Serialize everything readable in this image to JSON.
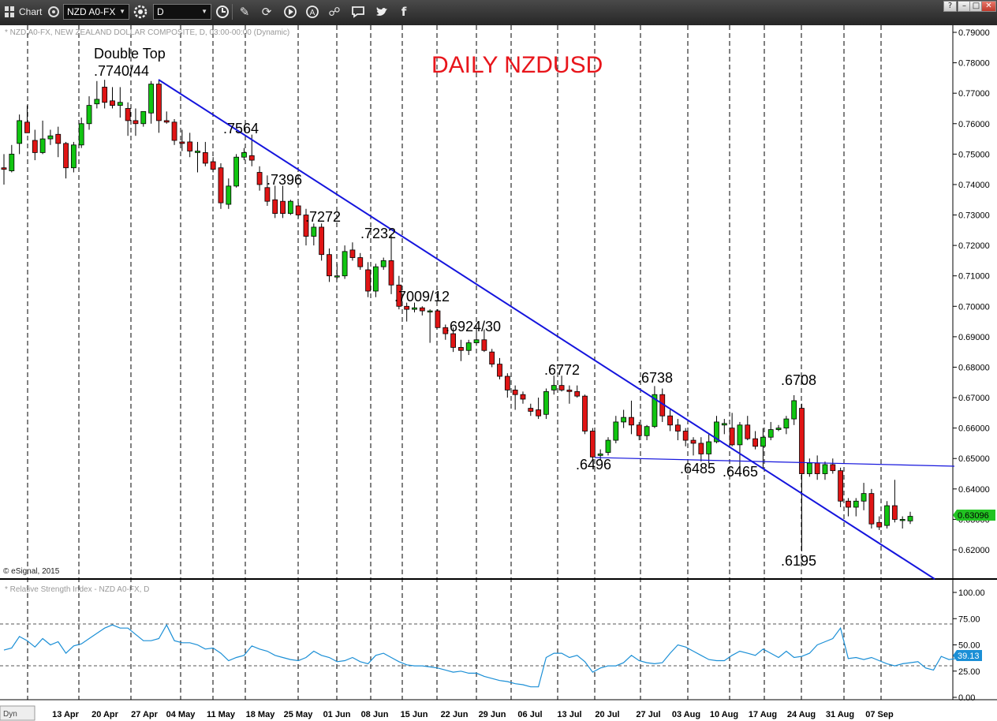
{
  "toolbar": {
    "app_label": "Chart",
    "symbol": "NZD A0-FX",
    "interval": "D",
    "icons": [
      "grid-icon",
      "sync-icon",
      "settings-icon",
      "clock-icon",
      "pencil-icon",
      "cycle-icon",
      "play-icon",
      "alert-icon",
      "link-icon",
      "comment-icon",
      "twitter-icon",
      "facebook-icon"
    ],
    "window_buttons": [
      "?",
      "–",
      "□",
      "✕"
    ]
  },
  "price_pane": {
    "header": "* NZD A0-FX, NEW ZEALAND DOLLAR COMPOSITE, D, 03:00-00:00 (Dynamic)",
    "title": "DAILY NZDUSD",
    "title_color": "#e8151b",
    "credit": "© eSignal, 2015",
    "y_ticks": [
      "0.79000",
      "0.78000",
      "0.77000",
      "0.76000",
      "0.75000",
      "0.74000",
      "0.73000",
      "0.72000",
      "0.71000",
      "0.70000",
      "0.69000",
      "0.68000",
      "0.67000",
      "0.66000",
      "0.65000",
      "0.64000",
      "0.63000",
      "0.62000"
    ],
    "last_price": "0.63096",
    "last_price_bg": "#22c322"
  },
  "rsi_pane": {
    "header": "* Relative Strength Index - NZD A0-FX, D",
    "y_ticks": [
      "100.00",
      "75.00",
      "50.00",
      "25.00",
      "0.00"
    ],
    "last_value": "39.13",
    "line_color": "#1b8fd6",
    "last_bg": "#1b8fd6"
  },
  "footer": {
    "dyn_label": "Dyn",
    "x_ticks": [
      "13 Apr",
      "20 Apr",
      "27 Apr",
      "04 May",
      "11 May",
      "18 May",
      "25 May",
      "01 Jun",
      "08 Jun",
      "15 Jun",
      "22 Jun",
      "29 Jun",
      "06 Jul",
      "13 Jul",
      "20 Jul",
      "27 Jul",
      "03 Aug",
      "10 Aug",
      "17 Aug",
      "24 Aug",
      "31 Aug",
      "07 Sep"
    ]
  },
  "chart_data": {
    "type": "candlestick",
    "up_color": "#11c511",
    "down_color": "#e01515",
    "trendline_color": "#1515dd",
    "candles": [
      {
        "o": 0.7455,
        "h": 0.75,
        "l": 0.74,
        "c": 0.745
      },
      {
        "o": 0.7445,
        "h": 0.753,
        "l": 0.744,
        "c": 0.75
      },
      {
        "o": 0.7535,
        "h": 0.763,
        "l": 0.75,
        "c": 0.761
      },
      {
        "o": 0.7605,
        "h": 0.766,
        "l": 0.757,
        "c": 0.757
      },
      {
        "o": 0.7545,
        "h": 0.758,
        "l": 0.748,
        "c": 0.7505
      },
      {
        "o": 0.7505,
        "h": 0.761,
        "l": 0.75,
        "c": 0.755
      },
      {
        "o": 0.755,
        "h": 0.758,
        "l": 0.753,
        "c": 0.756
      },
      {
        "o": 0.7565,
        "h": 0.759,
        "l": 0.749,
        "c": 0.7535
      },
      {
        "o": 0.7535,
        "h": 0.754,
        "l": 0.742,
        "c": 0.7455
      },
      {
        "o": 0.7455,
        "h": 0.754,
        "l": 0.744,
        "c": 0.753
      },
      {
        "o": 0.753,
        "h": 0.762,
        "l": 0.752,
        "c": 0.76
      },
      {
        "o": 0.76,
        "h": 0.769,
        "l": 0.758,
        "c": 0.766
      },
      {
        "o": 0.7665,
        "h": 0.774,
        "l": 0.765,
        "c": 0.768
      },
      {
        "o": 0.772,
        "h": 0.7744,
        "l": 0.765,
        "c": 0.767
      },
      {
        "o": 0.7675,
        "h": 0.772,
        "l": 0.765,
        "c": 0.766
      },
      {
        "o": 0.766,
        "h": 0.772,
        "l": 0.762,
        "c": 0.767
      },
      {
        "o": 0.765,
        "h": 0.767,
        "l": 0.756,
        "c": 0.761
      },
      {
        "o": 0.761,
        "h": 0.765,
        "l": 0.756,
        "c": 0.76
      },
      {
        "o": 0.76,
        "h": 0.764,
        "l": 0.759,
        "c": 0.764
      },
      {
        "o": 0.7635,
        "h": 0.774,
        "l": 0.76,
        "c": 0.773
      },
      {
        "o": 0.773,
        "h": 0.7744,
        "l": 0.757,
        "c": 0.761
      },
      {
        "o": 0.761,
        "h": 0.764,
        "l": 0.76,
        "c": 0.7605
      },
      {
        "o": 0.7605,
        "h": 0.7615,
        "l": 0.753,
        "c": 0.7545
      },
      {
        "o": 0.754,
        "h": 0.758,
        "l": 0.751,
        "c": 0.7535
      },
      {
        "o": 0.754,
        "h": 0.757,
        "l": 0.749,
        "c": 0.751
      },
      {
        "o": 0.7505,
        "h": 0.754,
        "l": 0.744,
        "c": 0.751
      },
      {
        "o": 0.7505,
        "h": 0.754,
        "l": 0.746,
        "c": 0.747
      },
      {
        "o": 0.7475,
        "h": 0.749,
        "l": 0.744,
        "c": 0.745
      },
      {
        "o": 0.7455,
        "h": 0.747,
        "l": 0.732,
        "c": 0.734
      },
      {
        "o": 0.7335,
        "h": 0.742,
        "l": 0.732,
        "c": 0.7395
      },
      {
        "o": 0.7395,
        "h": 0.75,
        "l": 0.739,
        "c": 0.749
      },
      {
        "o": 0.749,
        "h": 0.752,
        "l": 0.748,
        "c": 0.7505
      },
      {
        "o": 0.7495,
        "h": 0.7564,
        "l": 0.746,
        "c": 0.748
      },
      {
        "o": 0.744,
        "h": 0.746,
        "l": 0.738,
        "c": 0.74
      },
      {
        "o": 0.739,
        "h": 0.743,
        "l": 0.733,
        "c": 0.7345
      },
      {
        "o": 0.735,
        "h": 0.7396,
        "l": 0.729,
        "c": 0.7305
      },
      {
        "o": 0.7345,
        "h": 0.7396,
        "l": 0.729,
        "c": 0.7305
      },
      {
        "o": 0.7305,
        "h": 0.735,
        "l": 0.73,
        "c": 0.7345
      },
      {
        "o": 0.733,
        "h": 0.734,
        "l": 0.729,
        "c": 0.73
      },
      {
        "o": 0.73,
        "h": 0.732,
        "l": 0.72,
        "c": 0.723
      },
      {
        "o": 0.723,
        "h": 0.7272,
        "l": 0.72,
        "c": 0.726
      },
      {
        "o": 0.726,
        "h": 0.7272,
        "l": 0.715,
        "c": 0.717
      },
      {
        "o": 0.717,
        "h": 0.719,
        "l": 0.708,
        "c": 0.71
      },
      {
        "o": 0.71,
        "h": 0.714,
        "l": 0.709,
        "c": 0.71
      },
      {
        "o": 0.71,
        "h": 0.72,
        "l": 0.709,
        "c": 0.718
      },
      {
        "o": 0.7185,
        "h": 0.721,
        "l": 0.715,
        "c": 0.716
      },
      {
        "o": 0.716,
        "h": 0.7175,
        "l": 0.712,
        "c": 0.713
      },
      {
        "o": 0.712,
        "h": 0.7145,
        "l": 0.703,
        "c": 0.705
      },
      {
        "o": 0.705,
        "h": 0.714,
        "l": 0.703,
        "c": 0.713
      },
      {
        "o": 0.713,
        "h": 0.716,
        "l": 0.712,
        "c": 0.715
      },
      {
        "o": 0.715,
        "h": 0.7232,
        "l": 0.704,
        "c": 0.707
      },
      {
        "o": 0.707,
        "h": 0.71,
        "l": 0.699,
        "c": 0.7
      },
      {
        "o": 0.7,
        "h": 0.7012,
        "l": 0.695,
        "c": 0.699
      },
      {
        "o": 0.699,
        "h": 0.7012,
        "l": 0.698,
        "c": 0.6995
      },
      {
        "o": 0.6995,
        "h": 0.7,
        "l": 0.697,
        "c": 0.6985
      },
      {
        "o": 0.6985,
        "h": 0.699,
        "l": 0.688,
        "c": 0.6985
      },
      {
        "o": 0.6985,
        "h": 0.699,
        "l": 0.693,
        "c": 0.693
      },
      {
        "o": 0.693,
        "h": 0.694,
        "l": 0.689,
        "c": 0.691
      },
      {
        "o": 0.691,
        "h": 0.693,
        "l": 0.685,
        "c": 0.6865
      },
      {
        "o": 0.6865,
        "h": 0.689,
        "l": 0.682,
        "c": 0.6855
      },
      {
        "o": 0.6855,
        "h": 0.689,
        "l": 0.684,
        "c": 0.688
      },
      {
        "o": 0.688,
        "h": 0.693,
        "l": 0.687,
        "c": 0.689
      },
      {
        "o": 0.689,
        "h": 0.6924,
        "l": 0.685,
        "c": 0.6855
      },
      {
        "o": 0.685,
        "h": 0.686,
        "l": 0.68,
        "c": 0.681
      },
      {
        "o": 0.681,
        "h": 0.683,
        "l": 0.676,
        "c": 0.677
      },
      {
        "o": 0.677,
        "h": 0.678,
        "l": 0.67,
        "c": 0.6725
      },
      {
        "o": 0.6725,
        "h": 0.674,
        "l": 0.666,
        "c": 0.671
      },
      {
        "o": 0.671,
        "h": 0.672,
        "l": 0.668,
        "c": 0.6695
      },
      {
        "o": 0.6665,
        "h": 0.668,
        "l": 0.664,
        "c": 0.6655
      },
      {
        "o": 0.666,
        "h": 0.67,
        "l": 0.663,
        "c": 0.664
      },
      {
        "o": 0.6645,
        "h": 0.673,
        "l": 0.663,
        "c": 0.672
      },
      {
        "o": 0.6725,
        "h": 0.6772,
        "l": 0.671,
        "c": 0.674
      },
      {
        "o": 0.674,
        "h": 0.6772,
        "l": 0.672,
        "c": 0.6725
      },
      {
        "o": 0.6725,
        "h": 0.674,
        "l": 0.668,
        "c": 0.672
      },
      {
        "o": 0.672,
        "h": 0.674,
        "l": 0.67,
        "c": 0.6705
      },
      {
        "o": 0.6705,
        "h": 0.671,
        "l": 0.658,
        "c": 0.659
      },
      {
        "o": 0.659,
        "h": 0.66,
        "l": 0.6496,
        "c": 0.6505
      },
      {
        "o": 0.651,
        "h": 0.653,
        "l": 0.6496,
        "c": 0.6515
      },
      {
        "o": 0.652,
        "h": 0.657,
        "l": 0.651,
        "c": 0.656
      },
      {
        "o": 0.656,
        "h": 0.664,
        "l": 0.655,
        "c": 0.662
      },
      {
        "o": 0.662,
        "h": 0.666,
        "l": 0.66,
        "c": 0.6635
      },
      {
        "o": 0.6635,
        "h": 0.669,
        "l": 0.658,
        "c": 0.661
      },
      {
        "o": 0.661,
        "h": 0.662,
        "l": 0.656,
        "c": 0.6575
      },
      {
        "o": 0.6575,
        "h": 0.661,
        "l": 0.656,
        "c": 0.6605
      },
      {
        "o": 0.6605,
        "h": 0.6738,
        "l": 0.66,
        "c": 0.671
      },
      {
        "o": 0.671,
        "h": 0.673,
        "l": 0.662,
        "c": 0.664
      },
      {
        "o": 0.664,
        "h": 0.666,
        "l": 0.659,
        "c": 0.661
      },
      {
        "o": 0.661,
        "h": 0.663,
        "l": 0.656,
        "c": 0.659
      },
      {
        "o": 0.659,
        "h": 0.66,
        "l": 0.654,
        "c": 0.656
      },
      {
        "o": 0.656,
        "h": 0.657,
        "l": 0.651,
        "c": 0.655
      },
      {
        "o": 0.655,
        "h": 0.657,
        "l": 0.649,
        "c": 0.6515
      },
      {
        "o": 0.6515,
        "h": 0.658,
        "l": 0.6485,
        "c": 0.6555
      },
      {
        "o": 0.6555,
        "h": 0.664,
        "l": 0.655,
        "c": 0.662
      },
      {
        "o": 0.661,
        "h": 0.663,
        "l": 0.658,
        "c": 0.6615
      },
      {
        "o": 0.66,
        "h": 0.665,
        "l": 0.654,
        "c": 0.6545
      },
      {
        "o": 0.6545,
        "h": 0.662,
        "l": 0.647,
        "c": 0.661
      },
      {
        "o": 0.661,
        "h": 0.664,
        "l": 0.656,
        "c": 0.6565
      },
      {
        "o": 0.6565,
        "h": 0.659,
        "l": 0.653,
        "c": 0.654
      },
      {
        "o": 0.654,
        "h": 0.66,
        "l": 0.6465,
        "c": 0.657
      },
      {
        "o": 0.657,
        "h": 0.662,
        "l": 0.656,
        "c": 0.6595
      },
      {
        "o": 0.6595,
        "h": 0.661,
        "l": 0.659,
        "c": 0.66
      },
      {
        "o": 0.66,
        "h": 0.664,
        "l": 0.658,
        "c": 0.663
      },
      {
        "o": 0.663,
        "h": 0.6708,
        "l": 0.661,
        "c": 0.669
      },
      {
        "o": 0.6665,
        "h": 0.668,
        "l": 0.6195,
        "c": 0.645
      },
      {
        "o": 0.645,
        "h": 0.65,
        "l": 0.644,
        "c": 0.6485
      },
      {
        "o": 0.6485,
        "h": 0.651,
        "l": 0.643,
        "c": 0.645
      },
      {
        "o": 0.645,
        "h": 0.649,
        "l": 0.643,
        "c": 0.648
      },
      {
        "o": 0.648,
        "h": 0.65,
        "l": 0.645,
        "c": 0.646
      },
      {
        "o": 0.646,
        "h": 0.647,
        "l": 0.634,
        "c": 0.636
      },
      {
        "o": 0.636,
        "h": 0.637,
        "l": 0.631,
        "c": 0.634
      },
      {
        "o": 0.634,
        "h": 0.637,
        "l": 0.631,
        "c": 0.636
      },
      {
        "o": 0.636,
        "h": 0.642,
        "l": 0.633,
        "c": 0.6385
      },
      {
        "o": 0.6385,
        "h": 0.64,
        "l": 0.627,
        "c": 0.6285
      },
      {
        "o": 0.629,
        "h": 0.631,
        "l": 0.6265,
        "c": 0.6275
      },
      {
        "o": 0.628,
        "h": 0.636,
        "l": 0.627,
        "c": 0.6345
      },
      {
        "o": 0.6345,
        "h": 0.643,
        "l": 0.629,
        "c": 0.63
      },
      {
        "o": 0.63,
        "h": 0.631,
        "l": 0.627,
        "c": 0.63
      },
      {
        "o": 0.6295,
        "h": 0.6325,
        "l": 0.6285,
        "c": 0.631
      }
    ],
    "annotations": [
      {
        "text": "Double Top",
        "x": 119,
        "y": 42
      },
      {
        "text": ".7740/44",
        "x": 119,
        "y": 64
      },
      {
        "text": ".7564",
        "x": 283,
        "y": 137
      },
      {
        "text": ".7396",
        "x": 338,
        "y": 202
      },
      {
        "text": ".7272",
        "x": 387,
        "y": 249
      },
      {
        "text": ".7232",
        "x": 457,
        "y": 270
      },
      {
        "text": ".7009/12",
        "x": 500,
        "y": 350
      },
      {
        "text": ".6924/30",
        "x": 565,
        "y": 388
      },
      {
        "text": ".6772",
        "x": 690,
        "y": 443
      },
      {
        "text": ".6738",
        "x": 808,
        "y": 453
      },
      {
        "text": ".6708",
        "x": 990,
        "y": 456
      },
      {
        "text": ".6496",
        "x": 730,
        "y": 563
      },
      {
        "text": ".6485",
        "x": 862,
        "y": 568
      },
      {
        "text": ".6465",
        "x": 916,
        "y": 572
      },
      {
        "text": ".6195",
        "x": 990,
        "y": 685
      }
    ],
    "rsi": [
      45,
      47,
      58,
      54,
      48,
      56,
      50,
      53,
      42,
      49,
      51,
      56,
      61,
      66,
      69,
      66,
      66,
      60,
      54,
      54,
      56,
      69,
      54,
      52,
      52,
      50,
      46,
      47,
      42,
      35,
      38,
      40,
      49,
      46,
      44,
      40,
      38,
      36,
      35,
      38,
      44,
      40,
      38,
      34,
      35,
      38,
      34,
      32,
      40,
      42,
      38,
      34,
      31,
      30,
      30,
      29,
      28,
      26,
      24,
      25,
      23,
      23,
      20,
      18,
      16,
      15,
      13,
      12,
      10,
      10,
      38,
      42,
      42,
      38,
      40,
      34,
      24,
      28,
      30,
      30,
      33,
      40,
      35,
      33,
      32,
      33,
      42,
      50,
      48,
      44,
      40,
      36,
      35,
      35,
      40,
      44,
      42,
      40,
      46,
      42,
      38,
      44,
      38,
      39,
      42,
      50,
      53,
      56,
      66,
      37,
      38,
      36,
      38,
      35,
      32,
      30,
      32,
      33,
      34,
      28,
      26,
      39,
      36,
      37,
      39
    ],
    "xlim": [
      0,
      1210
    ],
    "ylim": [
      0.611,
      0.7935
    ],
    "rsi_ylim": [
      0,
      100
    ]
  }
}
